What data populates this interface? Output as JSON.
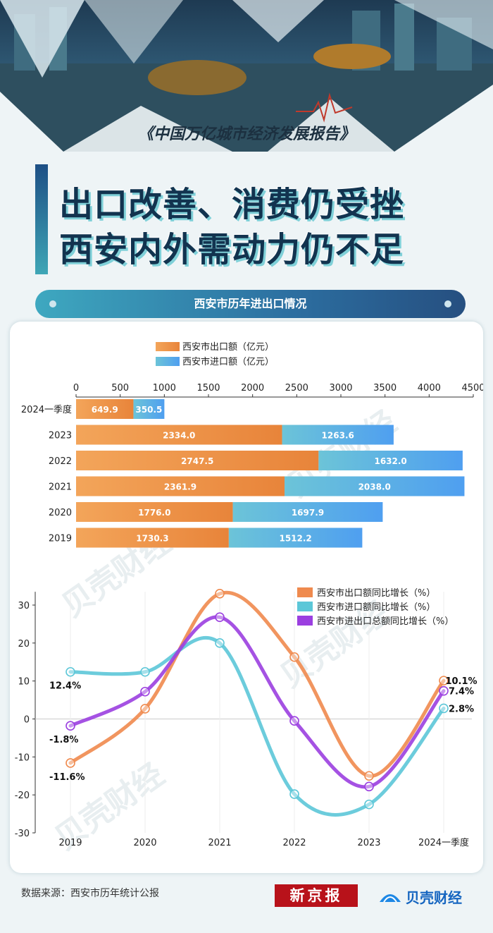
{
  "header": {
    "report_title": "《中国万亿城市经济发展报告》",
    "headline_line1": "出口改善、消费仍受挫",
    "headline_line2": "西安内外需动力仍不足",
    "section_title": "西安市历年进出口情况"
  },
  "chart_data": [
    {
      "type": "bar",
      "orientation": "horizontal",
      "stacked": true,
      "categories": [
        "2024一季度",
        "2023",
        "2022",
        "2021",
        "2020",
        "2019"
      ],
      "series": [
        {
          "name": "西安市出口额（亿元）",
          "color": "#ef8f3a",
          "values": [
            649.9,
            2334.0,
            2747.5,
            2361.9,
            1776.0,
            1730.3
          ],
          "labels": [
            "649.9",
            "2334.0",
            "2747.5",
            "2361.9",
            "1776.0",
            "1730.3"
          ]
        },
        {
          "name": "西安市进口额（亿元）",
          "color": "#5ab4db",
          "values": [
            350.5,
            1263.6,
            1632.0,
            2038.0,
            1697.9,
            1512.2
          ],
          "labels": [
            "350.5",
            "1263.6",
            "1632.0",
            "2038.0",
            "1697.9",
            "1512.2"
          ]
        }
      ],
      "x_ticks": [
        "0",
        "500",
        "1000",
        "1500",
        "2000",
        "2500",
        "3000",
        "3500",
        "4000",
        "4500"
      ],
      "xlim": [
        0,
        4500
      ],
      "legend": "top-left"
    },
    {
      "type": "line",
      "categories": [
        "2019",
        "2020",
        "2021",
        "2022",
        "2023",
        "2024一季度"
      ],
      "series": [
        {
          "name": "西安市出口额同比增长（%）",
          "color": "#ef8a4e",
          "values": [
            -11.6,
            2.7,
            33.0,
            16.3,
            -15.0,
            10.1
          ]
        },
        {
          "name": "西安市进口额同比增长（%）",
          "color": "#5cc7d8",
          "values": [
            12.4,
            12.4,
            20.0,
            -19.8,
            -22.5,
            2.8
          ]
        },
        {
          "name": "西安市进出口总额同比增长（%）",
          "color": "#9b3fe0",
          "values": [
            -1.8,
            7.2,
            26.8,
            -0.5,
            -17.8,
            7.4
          ]
        }
      ],
      "y_ticks": [
        "30",
        "20",
        "10",
        "0",
        "-10",
        "-20",
        "-30"
      ],
      "ylim": [
        -30,
        30
      ],
      "annotations": [
        {
          "text": "12.4%",
          "series": 1,
          "index": 0
        },
        {
          "text": "-1.8%",
          "series": 2,
          "index": 0
        },
        {
          "text": "-11.6%",
          "series": 0,
          "index": 0
        },
        {
          "text": "10.1%",
          "series": 0,
          "index": 5
        },
        {
          "text": "7.4%",
          "series": 2,
          "index": 5
        },
        {
          "text": "2.8%",
          "series": 1,
          "index": 5
        }
      ],
      "legend": "top-right"
    }
  ],
  "watermark": "贝壳财经",
  "footer": {
    "source": "数据来源：西安市历年统计公报",
    "logo_xjb": "新京报",
    "logo_bk": "贝壳财经"
  }
}
